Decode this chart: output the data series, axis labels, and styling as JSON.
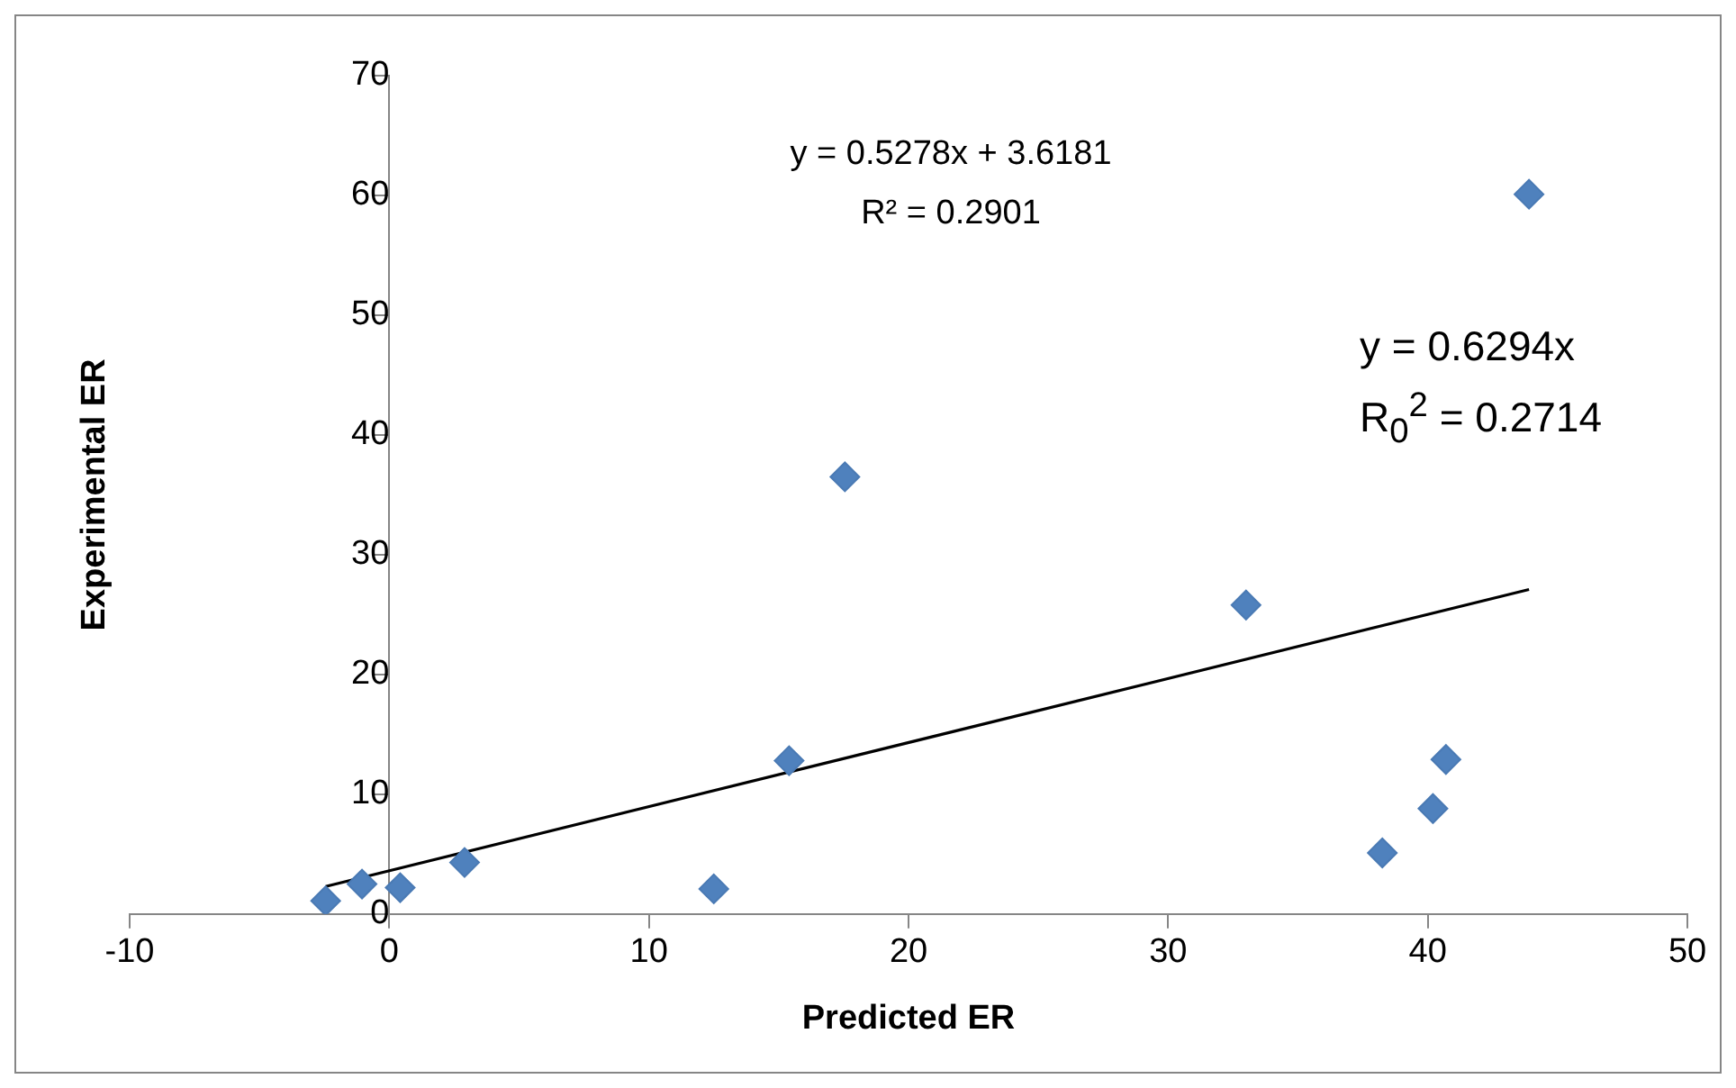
{
  "chart_data": {
    "type": "scatter",
    "xlabel": "Predicted ER",
    "ylabel": "Experimental ER",
    "x": [
      -2.45,
      -1.05,
      0.42,
      2.9,
      12.5,
      15.4,
      17.55,
      33.0,
      38.25,
      40.2,
      40.7,
      43.9
    ],
    "series": [
      {
        "color": "#4f81bd",
        "values": [
          1.1,
          2.5,
          2.2,
          4.3,
          2.1,
          12.8,
          36.5,
          25.8,
          5.1,
          8.8,
          12.9,
          60.1
        ],
        "marker": "diamond"
      },
      {
        "type": "line",
        "color": "#000000",
        "x": [
          -2.45,
          43.9
        ],
        "values": [
          2.3,
          27.1
        ],
        "marker": "none",
        "line_style": "solid"
      }
    ],
    "xlim": [
      -10,
      50
    ],
    "xticks": [
      -10,
      0,
      10,
      20,
      30,
      40,
      50
    ],
    "ylim": [
      0,
      70
    ],
    "yticks": [
      0,
      10,
      20,
      30,
      40,
      50,
      60,
      70
    ],
    "grid": false,
    "legend": false,
    "annotations": [
      "y = 0.5278x + 3.6181",
      "R² = 0.2901",
      "y = 0.6294x",
      "R$_{0}$$^{2}$ = 0.2714"
    ]
  }
}
